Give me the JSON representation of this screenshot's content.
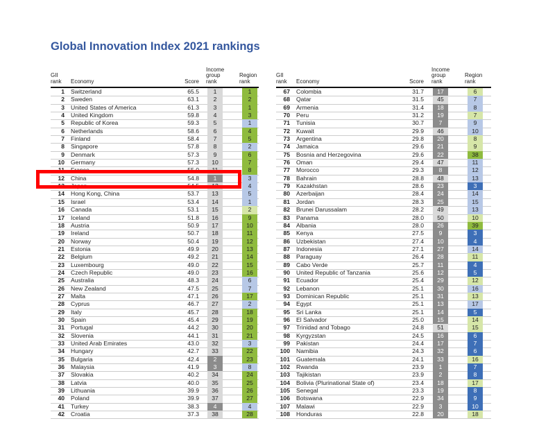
{
  "title": "Global Innovation Index 2021 rankings",
  "headers": {
    "gii_rank": "GII\nrank",
    "economy": "Economy",
    "score": "Score",
    "income_group_rank": "Income\ngroup\nrank",
    "region_rank": "Region\nrank"
  },
  "colors": {
    "income_high": "#d9d9d9",
    "income_upper_middle": "#8c8c8c",
    "region_green": "#8fbb3e",
    "region_lightgreen": "#d6e6a8",
    "region_lightblue": "#b7c8e6",
    "region_blue": "#3e6fb7",
    "region_midblue": "#6e8fcf",
    "highlight": "#ff0000"
  },
  "left_rows": [
    {
      "rank": "1",
      "economy": "Switzerland",
      "score": "65.5",
      "income": "1",
      "region": "1",
      "ic": "h",
      "rc": "g"
    },
    {
      "rank": "2",
      "economy": "Sweden",
      "score": "63.1",
      "income": "2",
      "region": "2",
      "ic": "h",
      "rc": "g"
    },
    {
      "rank": "3",
      "economy": "United States of America",
      "score": "61.3",
      "income": "3",
      "region": "1",
      "ic": "h",
      "rc": "g"
    },
    {
      "rank": "4",
      "economy": "United Kingdom",
      "score": "59.8",
      "income": "4",
      "region": "3",
      "ic": "h",
      "rc": "g"
    },
    {
      "rank": "5",
      "economy": "Republic of Korea",
      "score": "59.3",
      "income": "5",
      "region": "1",
      "ic": "h",
      "rc": "lb"
    },
    {
      "rank": "6",
      "economy": "Netherlands",
      "score": "58.6",
      "income": "6",
      "region": "4",
      "ic": "h",
      "rc": "g"
    },
    {
      "rank": "7",
      "economy": "Finland",
      "score": "58.4",
      "income": "7",
      "region": "5",
      "ic": "h",
      "rc": "g"
    },
    {
      "rank": "8",
      "economy": "Singapore",
      "score": "57.8",
      "income": "8",
      "region": "2",
      "ic": "h",
      "rc": "lb"
    },
    {
      "rank": "9",
      "economy": "Denmark",
      "score": "57.3",
      "income": "9",
      "region": "6",
      "ic": "h",
      "rc": "g"
    },
    {
      "rank": "10",
      "economy": "Germany",
      "score": "57.3",
      "income": "10",
      "region": "7",
      "ic": "h",
      "rc": "g"
    },
    {
      "rank": "11",
      "economy": "France",
      "score": "55.0",
      "income": "11",
      "region": "8",
      "ic": "h",
      "rc": "g"
    },
    {
      "rank": "12",
      "economy": "China",
      "score": "54.8",
      "income": "1",
      "region": "3",
      "ic": "m",
      "rc": "lb"
    },
    {
      "rank": "13",
      "economy": "Japan",
      "score": "54.5",
      "income": "12",
      "region": "4",
      "ic": "h",
      "rc": "lb"
    },
    {
      "rank": "14",
      "economy": "Hong Kong, China",
      "score": "53.7",
      "income": "13",
      "region": "5",
      "ic": "h",
      "rc": "lb"
    },
    {
      "rank": "15",
      "economy": "Israel",
      "score": "53.4",
      "income": "14",
      "region": "1",
      "ic": "h",
      "rc": "lb"
    },
    {
      "rank": "16",
      "economy": "Canada",
      "score": "53.1",
      "income": "15",
      "region": "2",
      "ic": "h",
      "rc": "lg"
    },
    {
      "rank": "17",
      "economy": "Iceland",
      "score": "51.8",
      "income": "16",
      "region": "9",
      "ic": "h",
      "rc": "g"
    },
    {
      "rank": "18",
      "economy": "Austria",
      "score": "50.9",
      "income": "17",
      "region": "10",
      "ic": "h",
      "rc": "g"
    },
    {
      "rank": "19",
      "economy": "Ireland",
      "score": "50.7",
      "income": "18",
      "region": "11",
      "ic": "h",
      "rc": "g"
    },
    {
      "rank": "20",
      "economy": "Norway",
      "score": "50.4",
      "income": "19",
      "region": "12",
      "ic": "h",
      "rc": "g"
    },
    {
      "rank": "21",
      "economy": "Estonia",
      "score": "49.9",
      "income": "20",
      "region": "13",
      "ic": "h",
      "rc": "g"
    },
    {
      "rank": "22",
      "economy": "Belgium",
      "score": "49.2",
      "income": "21",
      "region": "14",
      "ic": "h",
      "rc": "g"
    },
    {
      "rank": "23",
      "economy": "Luxembourg",
      "score": "49.0",
      "income": "22",
      "region": "15",
      "ic": "h",
      "rc": "g"
    },
    {
      "rank": "24",
      "economy": "Czech Republic",
      "score": "49.0",
      "income": "23",
      "region": "16",
      "ic": "h",
      "rc": "g"
    },
    {
      "rank": "25",
      "economy": "Australia",
      "score": "48.3",
      "income": "24",
      "region": "6",
      "ic": "h",
      "rc": "lb"
    },
    {
      "rank": "26",
      "economy": "New Zealand",
      "score": "47.5",
      "income": "25",
      "region": "7",
      "ic": "h",
      "rc": "lb"
    },
    {
      "rank": "27",
      "economy": "Malta",
      "score": "47.1",
      "income": "26",
      "region": "17",
      "ic": "h",
      "rc": "g"
    },
    {
      "rank": "28",
      "economy": "Cyprus",
      "score": "46.7",
      "income": "27",
      "region": "2",
      "ic": "h",
      "rc": "lb"
    },
    {
      "rank": "29",
      "economy": "Italy",
      "score": "45.7",
      "income": "28",
      "region": "18",
      "ic": "h",
      "rc": "g"
    },
    {
      "rank": "30",
      "economy": "Spain",
      "score": "45.4",
      "income": "29",
      "region": "19",
      "ic": "h",
      "rc": "g"
    },
    {
      "rank": "31",
      "economy": "Portugal",
      "score": "44.2",
      "income": "30",
      "region": "20",
      "ic": "h",
      "rc": "g"
    },
    {
      "rank": "32",
      "economy": "Slovenia",
      "score": "44.1",
      "income": "31",
      "region": "21",
      "ic": "h",
      "rc": "g"
    },
    {
      "rank": "33",
      "economy": "United Arab Emirates",
      "score": "43.0",
      "income": "32",
      "region": "3",
      "ic": "h",
      "rc": "lb"
    },
    {
      "rank": "34",
      "economy": "Hungary",
      "score": "42.7",
      "income": "33",
      "region": "22",
      "ic": "h",
      "rc": "g"
    },
    {
      "rank": "35",
      "economy": "Bulgaria",
      "score": "42.4",
      "income": "2",
      "region": "23",
      "ic": "m",
      "rc": "g"
    },
    {
      "rank": "36",
      "economy": "Malaysia",
      "score": "41.9",
      "income": "3",
      "region": "8",
      "ic": "m",
      "rc": "lb"
    },
    {
      "rank": "37",
      "economy": "Slovakia",
      "score": "40.2",
      "income": "34",
      "region": "24",
      "ic": "h",
      "rc": "g"
    },
    {
      "rank": "38",
      "economy": "Latvia",
      "score": "40.0",
      "income": "35",
      "region": "25",
      "ic": "h",
      "rc": "g"
    },
    {
      "rank": "39",
      "economy": "Lithuania",
      "score": "39.9",
      "income": "36",
      "region": "26",
      "ic": "h",
      "rc": "g"
    },
    {
      "rank": "40",
      "economy": "Poland",
      "score": "39.9",
      "income": "37",
      "region": "27",
      "ic": "h",
      "rc": "g"
    },
    {
      "rank": "41",
      "economy": "Turkey",
      "score": "38.3",
      "income": "4",
      "region": "4",
      "ic": "m",
      "rc": "lb"
    },
    {
      "rank": "42",
      "economy": "Croatia",
      "score": "37.3",
      "income": "38",
      "region": "28",
      "ic": "h",
      "rc": "g"
    }
  ],
  "right_rows": [
    {
      "rank": "67",
      "economy": "Colombia",
      "score": "31.7",
      "income": "17",
      "region": "6",
      "ic": "m",
      "rc": "lg"
    },
    {
      "rank": "68",
      "economy": "Qatar",
      "score": "31.5",
      "income": "45",
      "region": "7",
      "ic": "h",
      "rc": "lb"
    },
    {
      "rank": "69",
      "economy": "Armenia",
      "score": "31.4",
      "income": "18",
      "region": "8",
      "ic": "m",
      "rc": "lb"
    },
    {
      "rank": "70",
      "economy": "Peru",
      "score": "31.2",
      "income": "19",
      "region": "7",
      "ic": "m",
      "rc": "lg"
    },
    {
      "rank": "71",
      "economy": "Tunisia",
      "score": "30.7",
      "income": "7",
      "region": "9",
      "ic": "dm",
      "rc": "lb"
    },
    {
      "rank": "72",
      "economy": "Kuwait",
      "score": "29.9",
      "income": "46",
      "region": "10",
      "ic": "h",
      "rc": "lb"
    },
    {
      "rank": "73",
      "economy": "Argentina",
      "score": "29.8",
      "income": "20",
      "region": "8",
      "ic": "m",
      "rc": "lg"
    },
    {
      "rank": "74",
      "economy": "Jamaica",
      "score": "29.6",
      "income": "21",
      "region": "9",
      "ic": "m",
      "rc": "lg"
    },
    {
      "rank": "75",
      "economy": "Bosnia and Herzegovina",
      "score": "29.6",
      "income": "22",
      "region": "38",
      "ic": "m",
      "rc": "g"
    },
    {
      "rank": "76",
      "economy": "Oman",
      "score": "29.4",
      "income": "47",
      "region": "11",
      "ic": "h",
      "rc": "lb"
    },
    {
      "rank": "77",
      "economy": "Morocco",
      "score": "29.3",
      "income": "8",
      "region": "12",
      "ic": "dm",
      "rc": "lb"
    },
    {
      "rank": "78",
      "economy": "Bahrain",
      "score": "28.8",
      "income": "48",
      "region": "13",
      "ic": "h",
      "rc": "lb"
    },
    {
      "rank": "79",
      "economy": "Kazakhstan",
      "score": "28.6",
      "income": "23",
      "region": "3",
      "ic": "m",
      "rc": "b"
    },
    {
      "rank": "80",
      "economy": "Azerbaijan",
      "score": "28.4",
      "income": "24",
      "region": "14",
      "ic": "m",
      "rc": "lb"
    },
    {
      "rank": "81",
      "economy": "Jordan",
      "score": "28.3",
      "income": "25",
      "region": "15",
      "ic": "m",
      "rc": "lb"
    },
    {
      "rank": "82",
      "economy": "Brunei Darussalam",
      "score": "28.2",
      "income": "49",
      "region": "13",
      "ic": "h",
      "rc": "lb"
    },
    {
      "rank": "83",
      "economy": "Panama",
      "score": "28.0",
      "income": "50",
      "region": "10",
      "ic": "h",
      "rc": "lg"
    },
    {
      "rank": "84",
      "economy": "Albania",
      "score": "28.0",
      "income": "26",
      "region": "39",
      "ic": "m",
      "rc": "g"
    },
    {
      "rank": "85",
      "economy": "Kenya",
      "score": "27.5",
      "income": "9",
      "region": "3",
      "ic": "dm",
      "rc": "b"
    },
    {
      "rank": "86",
      "economy": "Uzbekistan",
      "score": "27.4",
      "income": "10",
      "region": "4",
      "ic": "dm",
      "rc": "b"
    },
    {
      "rank": "87",
      "economy": "Indonesia",
      "score": "27.1",
      "income": "27",
      "region": "14",
      "ic": "m",
      "rc": "lb"
    },
    {
      "rank": "88",
      "economy": "Paraguay",
      "score": "26.4",
      "income": "28",
      "region": "11",
      "ic": "m",
      "rc": "lg"
    },
    {
      "rank": "89",
      "economy": "Cabo Verde",
      "score": "25.7",
      "income": "11",
      "region": "4",
      "ic": "dm",
      "rc": "b"
    },
    {
      "rank": "90",
      "economy": "United Republic of Tanzania",
      "score": "25.6",
      "income": "12",
      "region": "5",
      "ic": "dm",
      "rc": "b"
    },
    {
      "rank": "91",
      "economy": "Ecuador",
      "score": "25.4",
      "income": "29",
      "region": "12",
      "ic": "m",
      "rc": "lg"
    },
    {
      "rank": "92",
      "economy": "Lebanon",
      "score": "25.1",
      "income": "30",
      "region": "16",
      "ic": "m",
      "rc": "lb"
    },
    {
      "rank": "93",
      "economy": "Dominican Republic",
      "score": "25.1",
      "income": "31",
      "region": "13",
      "ic": "m",
      "rc": "lg"
    },
    {
      "rank": "94",
      "economy": "Egypt",
      "score": "25.1",
      "income": "13",
      "region": "17",
      "ic": "dm",
      "rc": "lb"
    },
    {
      "rank": "95",
      "economy": "Sri Lanka",
      "score": "25.1",
      "income": "14",
      "region": "5",
      "ic": "dm",
      "rc": "b"
    },
    {
      "rank": "96",
      "economy": "El Salvador",
      "score": "25.0",
      "income": "15",
      "region": "14",
      "ic": "dm",
      "rc": "lg"
    },
    {
      "rank": "97",
      "economy": "Trinidad and Tobago",
      "score": "24.8",
      "income": "51",
      "region": "15",
      "ic": "h",
      "rc": "lg"
    },
    {
      "rank": "98",
      "economy": "Kyrgyzstan",
      "score": "24.5",
      "income": "16",
      "region": "6",
      "ic": "dm",
      "rc": "b"
    },
    {
      "rank": "99",
      "economy": "Pakistan",
      "score": "24.4",
      "income": "17",
      "region": "7",
      "ic": "dm",
      "rc": "b"
    },
    {
      "rank": "100",
      "economy": "Namibia",
      "score": "24.3",
      "income": "32",
      "region": "6",
      "ic": "m",
      "rc": "b"
    },
    {
      "rank": "101",
      "economy": "Guatemala",
      "score": "24.1",
      "income": "33",
      "region": "16",
      "ic": "m",
      "rc": "lg"
    },
    {
      "rank": "102",
      "economy": "Rwanda",
      "score": "23.9",
      "income": "1",
      "region": "7",
      "ic": "dm",
      "rc": "b"
    },
    {
      "rank": "103",
      "economy": "Tajikistan",
      "score": "23.9",
      "income": "2",
      "region": "8",
      "ic": "dm",
      "rc": "b"
    },
    {
      "rank": "104",
      "economy": "Bolivia (Plurinational State of)",
      "score": "23.4",
      "income": "18",
      "region": "17",
      "ic": "dm",
      "rc": "lg"
    },
    {
      "rank": "105",
      "economy": "Senegal",
      "score": "23.3",
      "income": "19",
      "region": "8",
      "ic": "dm",
      "rc": "b"
    },
    {
      "rank": "106",
      "economy": "Botswana",
      "score": "22.9",
      "income": "34",
      "region": "9",
      "ic": "m",
      "rc": "b"
    },
    {
      "rank": "107",
      "economy": "Malawi",
      "score": "22.9",
      "income": "3",
      "region": "10",
      "ic": "dm",
      "rc": "b"
    },
    {
      "rank": "108",
      "economy": "Honduras",
      "score": "22.8",
      "income": "20",
      "region": "18",
      "ic": "dm",
      "rc": "lg"
    }
  ]
}
